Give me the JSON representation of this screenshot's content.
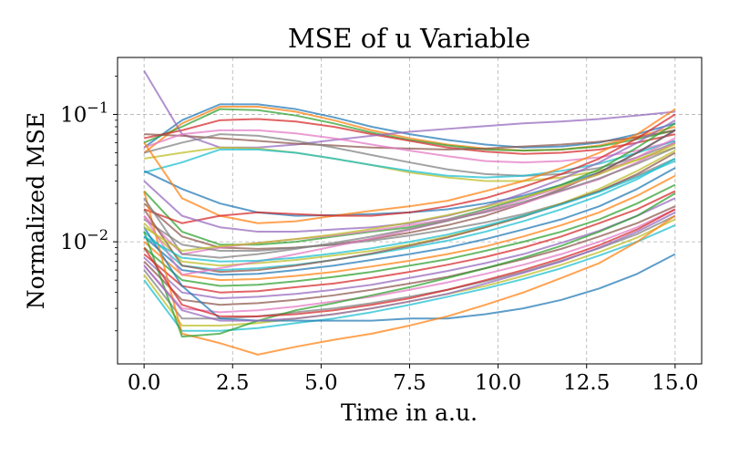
{
  "chart_data": {
    "type": "line",
    "title": "MSE of u Variable",
    "xlabel": "Time in a.u.",
    "ylabel": "Normalized MSE",
    "x": [
      0,
      1.071,
      2.143,
      3.214,
      4.286,
      5.357,
      6.429,
      7.5,
      8.571,
      9.643,
      10.714,
      11.786,
      12.857,
      13.929,
      15
    ],
    "xlim": [
      -0.75,
      15.75
    ],
    "ylim": [
      0.0011,
      0.28
    ],
    "yscale": "log",
    "grid": true,
    "xticks": [
      0,
      2.5,
      5,
      7.5,
      10,
      12.5,
      15
    ],
    "xtick_labels": [
      "0.0",
      "2.5",
      "5.0",
      "7.5",
      "10.0",
      "12.5",
      "15.0"
    ],
    "yticks": [
      {
        "value": 0.1,
        "base": "10",
        "exp": "−1"
      },
      {
        "value": 0.01,
        "base": "10",
        "exp": "−2"
      }
    ],
    "series_colors": [
      "#1f77b4",
      "#ff7f0e",
      "#2ca02c",
      "#d62728",
      "#9467bd",
      "#8c564b",
      "#e377c2",
      "#7f7f7f",
      "#bcbd22",
      "#17becf"
    ],
    "series": [
      {
        "values": [
          0.055,
          0.09,
          0.12,
          0.12,
          0.11,
          0.095,
          0.08,
          0.07,
          0.063,
          0.058,
          0.055,
          0.056,
          0.06,
          0.07,
          0.085
        ]
      },
      {
        "values": [
          0.05,
          0.085,
          0.115,
          0.115,
          0.105,
          0.09,
          0.075,
          0.065,
          0.058,
          0.054,
          0.052,
          0.053,
          0.057,
          0.067,
          0.08
        ]
      },
      {
        "values": [
          0.06,
          0.08,
          0.11,
          0.108,
          0.098,
          0.085,
          0.072,
          0.063,
          0.057,
          0.053,
          0.052,
          0.053,
          0.056,
          0.064,
          0.075
        ]
      },
      {
        "values": [
          0.065,
          0.075,
          0.09,
          0.092,
          0.088,
          0.08,
          0.07,
          0.062,
          0.055,
          0.051,
          0.049,
          0.05,
          0.053,
          0.06,
          0.07
        ]
      },
      {
        "values": [
          0.22,
          0.07,
          0.055,
          0.055,
          0.058,
          0.063,
          0.068,
          0.073,
          0.077,
          0.081,
          0.085,
          0.088,
          0.092,
          0.098,
          0.105
        ]
      },
      {
        "values": [
          0.07,
          0.068,
          0.065,
          0.062,
          0.059,
          0.057,
          0.055,
          0.054,
          0.053,
          0.054,
          0.056,
          0.058,
          0.061,
          0.066,
          0.075
        ]
      },
      {
        "values": [
          0.055,
          0.07,
          0.075,
          0.075,
          0.071,
          0.065,
          0.058,
          0.052,
          0.047,
          0.043,
          0.042,
          0.043,
          0.046,
          0.052,
          0.062
        ]
      },
      {
        "values": [
          0.05,
          0.06,
          0.07,
          0.068,
          0.062,
          0.055,
          0.048,
          0.042,
          0.037,
          0.034,
          0.033,
          0.034,
          0.038,
          0.046,
          0.06
        ]
      },
      {
        "values": [
          0.045,
          0.05,
          0.055,
          0.054,
          0.05,
          0.045,
          0.04,
          0.035,
          0.032,
          0.03,
          0.03,
          0.032,
          0.036,
          0.044,
          0.055
        ]
      },
      {
        "values": [
          0.035,
          0.042,
          0.053,
          0.053,
          0.05,
          0.045,
          0.04,
          0.036,
          0.033,
          0.032,
          0.033,
          0.036,
          0.041,
          0.05,
          0.062
        ]
      },
      {
        "values": [
          0.036,
          0.026,
          0.02,
          0.017,
          0.016,
          0.0162,
          0.0165,
          0.017,
          0.018,
          0.02,
          0.023,
          0.028,
          0.035,
          0.05,
          0.075
        ]
      },
      {
        "values": [
          0.06,
          0.022,
          0.016,
          0.014,
          0.0145,
          0.016,
          0.0175,
          0.019,
          0.021,
          0.025,
          0.03,
          0.038,
          0.05,
          0.07,
          0.11
        ]
      },
      {
        "values": [
          0.025,
          0.012,
          0.0095,
          0.0095,
          0.01,
          0.011,
          0.012,
          0.013,
          0.015,
          0.018,
          0.022,
          0.028,
          0.037,
          0.055,
          0.085
        ]
      },
      {
        "values": [
          0.018,
          0.014,
          0.016,
          0.017,
          0.0165,
          0.016,
          0.016,
          0.017,
          0.019,
          0.022,
          0.027,
          0.034,
          0.045,
          0.065,
          0.1
        ]
      },
      {
        "values": [
          0.03,
          0.016,
          0.013,
          0.012,
          0.012,
          0.0125,
          0.013,
          0.014,
          0.016,
          0.019,
          0.024,
          0.031,
          0.042,
          0.06,
          0.09
        ]
      },
      {
        "values": [
          0.02,
          0.011,
          0.009,
          0.0088,
          0.009,
          0.0095,
          0.0105,
          0.0118,
          0.0135,
          0.016,
          0.02,
          0.026,
          0.035,
          0.05,
          0.075
        ]
      },
      {
        "values": [
          0.016,
          0.008,
          0.009,
          0.0098,
          0.0105,
          0.0112,
          0.0122,
          0.0135,
          0.015,
          0.017,
          0.02,
          0.025,
          0.031,
          0.042,
          0.06
        ]
      },
      {
        "values": [
          0.015,
          0.0095,
          0.0085,
          0.0085,
          0.009,
          0.0095,
          0.0102,
          0.0112,
          0.0125,
          0.0142,
          0.0165,
          0.02,
          0.025,
          0.033,
          0.045
        ]
      },
      {
        "values": [
          0.014,
          0.007,
          0.0065,
          0.0068,
          0.0072,
          0.0078,
          0.0085,
          0.0095,
          0.011,
          0.013,
          0.016,
          0.02,
          0.026,
          0.036,
          0.052
        ]
      },
      {
        "values": [
          0.012,
          0.0065,
          0.006,
          0.0062,
          0.0066,
          0.0072,
          0.008,
          0.009,
          0.0102,
          0.012,
          0.0145,
          0.018,
          0.023,
          0.031,
          0.045
        ]
      },
      {
        "values": [
          0.011,
          0.006,
          0.0055,
          0.0056,
          0.006,
          0.0065,
          0.0072,
          0.008,
          0.009,
          0.0105,
          0.0125,
          0.015,
          0.019,
          0.026,
          0.038
        ]
      },
      {
        "values": [
          0.01,
          0.0055,
          0.005,
          0.0051,
          0.0054,
          0.0058,
          0.0064,
          0.0071,
          0.008,
          0.0092,
          0.011,
          0.0135,
          0.017,
          0.023,
          0.033
        ]
      },
      {
        "values": [
          0.009,
          0.005,
          0.0045,
          0.0046,
          0.0049,
          0.0053,
          0.0058,
          0.0065,
          0.0073,
          0.0085,
          0.01,
          0.012,
          0.015,
          0.02,
          0.028
        ]
      },
      {
        "values": [
          0.008,
          0.0045,
          0.004,
          0.0041,
          0.0044,
          0.0047,
          0.0052,
          0.0058,
          0.0066,
          0.0076,
          0.009,
          0.011,
          0.014,
          0.018,
          0.025
        ]
      },
      {
        "values": [
          0.0075,
          0.004,
          0.0036,
          0.0037,
          0.0039,
          0.0042,
          0.0046,
          0.0052,
          0.0059,
          0.0068,
          0.008,
          0.0098,
          0.0122,
          0.016,
          0.022
        ]
      },
      {
        "values": [
          0.007,
          0.0035,
          0.0032,
          0.0033,
          0.0035,
          0.0038,
          0.0042,
          0.0047,
          0.0053,
          0.0062,
          0.0073,
          0.0088,
          0.011,
          0.014,
          0.019
        ]
      },
      {
        "values": [
          0.0065,
          0.003,
          0.0028,
          0.0029,
          0.0031,
          0.0034,
          0.0037,
          0.0042,
          0.0048,
          0.0056,
          0.0066,
          0.008,
          0.01,
          0.013,
          0.018
        ]
      },
      {
        "values": [
          0.006,
          0.0025,
          0.0025,
          0.0026,
          0.0028,
          0.003,
          0.0033,
          0.0037,
          0.0042,
          0.0049,
          0.0058,
          0.0071,
          0.0089,
          0.0115,
          0.016
        ]
      },
      {
        "values": [
          0.0055,
          0.0022,
          0.0022,
          0.0023,
          0.0025,
          0.0027,
          0.003,
          0.0034,
          0.0039,
          0.0045,
          0.0054,
          0.0066,
          0.0083,
          0.0108,
          0.015
        ]
      },
      {
        "values": [
          0.005,
          0.002,
          0.002,
          0.0021,
          0.0023,
          0.0025,
          0.0028,
          0.0032,
          0.0037,
          0.0043,
          0.0051,
          0.0062,
          0.0078,
          0.01,
          0.0135
        ]
      },
      {
        "values": [
          0.013,
          0.0045,
          0.0025,
          0.0024,
          0.0024,
          0.0024,
          0.0024,
          0.0025,
          0.0025,
          0.0027,
          0.003,
          0.0035,
          0.0043,
          0.0056,
          0.008
        ]
      },
      {
        "values": [
          0.025,
          0.0019,
          0.0016,
          0.0013,
          0.0015,
          0.0017,
          0.0019,
          0.0022,
          0.0026,
          0.0032,
          0.004,
          0.0052,
          0.0068,
          0.01,
          0.016
        ]
      },
      {
        "values": [
          0.012,
          0.0018,
          0.0019,
          0.0024,
          0.0029,
          0.0033,
          0.0038,
          0.0044,
          0.0052,
          0.0062,
          0.0075,
          0.0093,
          0.012,
          0.016,
          0.024
        ]
      },
      {
        "values": [
          0.009,
          0.0032,
          0.0026,
          0.0026,
          0.0027,
          0.0029,
          0.0032,
          0.0036,
          0.0042,
          0.005,
          0.006,
          0.0074,
          0.0094,
          0.0125,
          0.018
        ]
      },
      {
        "values": [
          0.0065,
          0.0029,
          0.0024,
          0.0024,
          0.0025,
          0.0027,
          0.003,
          0.0034,
          0.0039,
          0.0047,
          0.0057,
          0.007,
          0.009,
          0.012,
          0.017
        ]
      },
      {
        "values": [
          0.018,
          0.0065,
          0.0058,
          0.006,
          0.0065,
          0.0072,
          0.0081,
          0.0093,
          0.0108,
          0.013,
          0.0158,
          0.0198,
          0.025,
          0.034,
          0.05
        ]
      },
      {
        "values": [
          0.016,
          0.0055,
          0.0062,
          0.007,
          0.008,
          0.0092,
          0.0106,
          0.0124,
          0.0146,
          0.0176,
          0.0215,
          0.0268,
          0.034,
          0.046,
          0.065
        ]
      },
      {
        "values": [
          0.022,
          0.008,
          0.0075,
          0.008,
          0.0088,
          0.0098,
          0.011,
          0.0126,
          0.0146,
          0.0172,
          0.0206,
          0.0252,
          0.0315,
          0.041,
          0.055
        ]
      },
      {
        "values": [
          0.013,
          0.0085,
          0.0092,
          0.0098,
          0.0105,
          0.0114,
          0.0126,
          0.0142,
          0.0162,
          0.0188,
          0.0224,
          0.0272,
          0.034,
          0.044,
          0.058
        ]
      },
      {
        "values": [
          0.011,
          0.0075,
          0.007,
          0.0071,
          0.0075,
          0.0081,
          0.0089,
          0.01,
          0.0114,
          0.0134,
          0.016,
          0.0196,
          0.0246,
          0.0322,
          0.043
        ]
      }
    ]
  }
}
